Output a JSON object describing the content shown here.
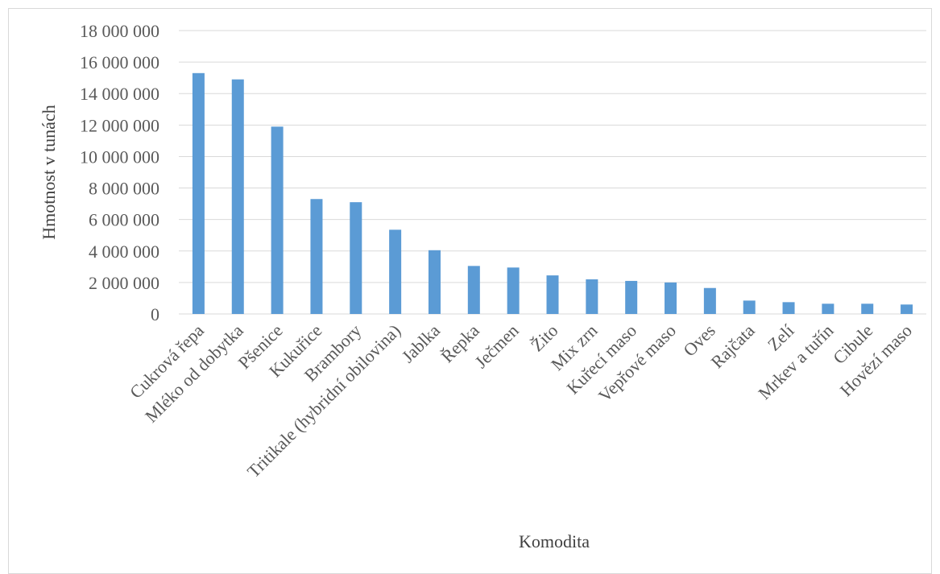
{
  "chart_data": {
    "type": "bar",
    "title": "",
    "xlabel": "Komodita",
    "ylabel": "Hmotnost v tunách",
    "ylim": [
      0,
      18000000
    ],
    "y_ticks": [
      0,
      2000000,
      4000000,
      6000000,
      8000000,
      10000000,
      12000000,
      14000000,
      16000000,
      18000000
    ],
    "y_tick_labels": [
      "0",
      "2 000 000",
      "4 000 000",
      "6 000 000",
      "8 000 000",
      "10 000 000",
      "12 000 000",
      "14 000 000",
      "16 000 000",
      "18 000 000"
    ],
    "categories": [
      "Cukrová řepa",
      "Mléko od dobytka",
      "Pšenice",
      "Kukuřice",
      "Brambory",
      "Tritikale (hybridní obilovina)",
      "Jablka",
      "Řepka",
      "Ječmen",
      "Žito",
      "Mix zrn",
      "Kuřecí maso",
      "Vepřové maso",
      "Oves",
      "Rajčata",
      "Zelí",
      "Mrkev a tuřín",
      "Cibule",
      "Hovězí maso"
    ],
    "values": [
      15300000,
      14900000,
      11900000,
      7300000,
      7100000,
      5350000,
      4050000,
      3050000,
      2950000,
      2450000,
      2200000,
      2100000,
      2000000,
      1650000,
      850000,
      750000,
      650000,
      650000,
      600000
    ],
    "grid": true,
    "legend": "none",
    "bar_color": "#5b9bd5"
  }
}
